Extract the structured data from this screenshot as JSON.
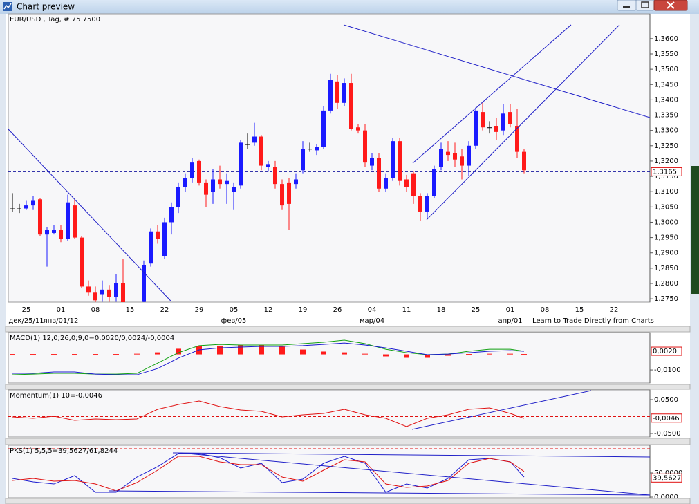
{
  "window": {
    "title": "Chart preview"
  },
  "link_text": "Learn to Trade Directly from Charts",
  "chart_data": [
    {
      "type": "candlestick",
      "title": "EUR/USD , Tag, # 75 7500",
      "categories": [
        null,
        null,
        "25",
        null,
        null,
        null,
        null,
        "01",
        null,
        null,
        null,
        null,
        "08",
        null,
        null,
        null,
        null,
        "15",
        null,
        null,
        null,
        null,
        "22",
        null,
        null,
        null,
        null,
        "29",
        null,
        null,
        null,
        null,
        "05",
        null,
        null,
        null,
        null,
        "12",
        null,
        null,
        null,
        null,
        "19",
        null,
        null,
        null,
        null,
        "26",
        null,
        null,
        null,
        null,
        "04",
        null,
        null,
        null,
        null,
        "11",
        null,
        null,
        null,
        null,
        "18",
        null,
        null,
        null,
        null,
        "25",
        null,
        null,
        null,
        null,
        "01",
        null,
        null,
        null,
        null,
        "08",
        null,
        null,
        null,
        null,
        "15",
        null,
        null,
        null,
        null,
        "22",
        null,
        null,
        null,
        null,
        null
      ],
      "period_labels": [
        null,
        null,
        "дек/25/11",
        null,
        null,
        null,
        null,
        "янв/01/12",
        null,
        null,
        null,
        null,
        null,
        null,
        null,
        null,
        null,
        null,
        null,
        null,
        null,
        null,
        null,
        null,
        null,
        null,
        null,
        null,
        null,
        null,
        null,
        null,
        "фев/05",
        null,
        null,
        null,
        null,
        null,
        null,
        null,
        null,
        null,
        null,
        null,
        null,
        null,
        null,
        null,
        null,
        null,
        null,
        null,
        "мар/04",
        null,
        null,
        null,
        null,
        null,
        null,
        null,
        null,
        null,
        null,
        null,
        null,
        null,
        null,
        null,
        null,
        null,
        null,
        null,
        "апр/01",
        null,
        null,
        null,
        null,
        null,
        null,
        null,
        null,
        null,
        null,
        null,
        null,
        null,
        null,
        null,
        null,
        null,
        null,
        null
      ],
      "open": [
        1.3045,
        1.3045,
        1.3045,
        1.3055,
        1.3075,
        1.296,
        1.2965,
        1.2975,
        1.2945,
        1.3055,
        1.295,
        1.279,
        1.277,
        1.2765,
        1.278,
        1.2755,
        1.28,
        null,
        null,
        1.274,
        1.2865,
        1.297,
        1.289,
        1.3,
        1.305,
        1.3115,
        1.3145,
        1.32,
        1.313,
        1.31,
        1.314,
        1.3125,
        1.31,
        1.312,
        1.3255,
        1.326,
        1.328,
        1.318,
        1.318,
        1.3125,
        1.313,
        1.3125,
        1.317,
        1.324,
        1.3235,
        1.3245,
        1.3365,
        1.346,
        1.339,
        1.3455,
        1.331,
        1.33,
        1.3185,
        1.321,
        1.311,
        1.3145,
        1.3265,
        1.314,
        1.316,
        1.3085,
        1.3035,
        1.3085,
        1.318,
        1.323,
        1.3225,
        1.3215,
        1.3185,
        1.325,
        1.336,
        1.331,
        1.3315,
        1.33,
        1.336,
        1.3315,
        1.323,
        null,
        null,
        null,
        null,
        null,
        null,
        null,
        null,
        null,
        null,
        null,
        null,
        null,
        null,
        null,
        null,
        null,
        null
      ],
      "high": [
        1.3095,
        1.306,
        1.307,
        1.3085,
        1.308,
        1.2985,
        1.299,
        1.299,
        1.309,
        1.3075,
        1.2955,
        1.281,
        1.279,
        1.281,
        1.2795,
        1.283,
        1.288,
        null,
        null,
        1.2875,
        1.298,
        1.299,
        1.3015,
        1.3065,
        1.313,
        1.316,
        1.321,
        1.3205,
        1.314,
        1.3175,
        1.3185,
        1.316,
        1.313,
        1.327,
        1.329,
        1.3325,
        1.3285,
        1.32,
        1.32,
        1.314,
        1.3145,
        1.316,
        1.3265,
        1.326,
        1.3255,
        1.338,
        1.3485,
        1.348,
        1.347,
        1.3485,
        1.332,
        1.332,
        1.3225,
        1.3225,
        1.316,
        1.3275,
        1.3275,
        1.3155,
        1.3165,
        1.3095,
        1.3095,
        1.3185,
        1.326,
        1.3265,
        1.326,
        1.324,
        1.3265,
        1.3375,
        1.339,
        1.333,
        1.334,
        1.3385,
        1.3385,
        1.337,
        1.324,
        null,
        null,
        null,
        null,
        null,
        null,
        null,
        null,
        null,
        null,
        null,
        null,
        null,
        null,
        null,
        null,
        null,
        null
      ],
      "low": [
        1.3035,
        1.303,
        1.304,
        1.304,
        1.2955,
        1.2855,
        1.296,
        1.2935,
        1.294,
        1.2945,
        1.2785,
        1.276,
        1.2735,
        1.274,
        1.274,
        1.274,
        1.272,
        null,
        null,
        1.273,
        1.2855,
        1.293,
        1.288,
        1.296,
        1.303,
        1.31,
        1.313,
        1.312,
        1.305,
        1.306,
        1.311,
        1.306,
        1.304,
        1.311,
        1.324,
        1.325,
        1.317,
        1.3165,
        1.311,
        1.304,
        1.2975,
        1.311,
        1.316,
        1.323,
        1.322,
        1.324,
        1.3355,
        1.337,
        1.338,
        1.33,
        1.329,
        1.318,
        1.317,
        1.31,
        1.31,
        1.3135,
        1.312,
        1.31,
        1.306,
        1.3005,
        1.301,
        1.308,
        1.317,
        1.32,
        1.318,
        1.314,
        1.315,
        1.324,
        1.33,
        1.329,
        1.327,
        1.3285,
        1.331,
        1.321,
        1.316,
        null,
        null,
        null,
        null,
        null,
        null,
        null,
        null,
        null,
        null,
        null,
        null,
        null,
        null,
        null,
        null,
        null,
        null
      ],
      "close": [
        1.3045,
        1.3045,
        1.3055,
        1.307,
        1.296,
        1.2975,
        1.2975,
        1.2945,
        1.3065,
        1.295,
        1.279,
        1.277,
        1.2745,
        1.278,
        1.2755,
        1.28,
        1.273,
        null,
        null,
        1.286,
        1.297,
        1.2945,
        1.3,
        1.305,
        1.3115,
        1.3145,
        1.3195,
        1.313,
        1.309,
        1.314,
        1.3125,
        1.3135,
        1.3115,
        1.326,
        1.3255,
        1.328,
        1.3185,
        1.319,
        1.3125,
        1.3055,
        1.306,
        1.314,
        1.324,
        1.324,
        1.3245,
        1.3365,
        1.3465,
        1.339,
        1.3455,
        1.3305,
        1.33,
        1.3195,
        1.321,
        1.311,
        1.3145,
        1.3265,
        1.3135,
        1.3115,
        1.3085,
        1.3035,
        1.3085,
        1.3175,
        1.324,
        1.322,
        1.3205,
        1.3185,
        1.325,
        1.3365,
        1.331,
        1.331,
        1.3295,
        1.3355,
        1.332,
        1.323,
        1.317,
        null,
        null,
        null,
        null,
        null,
        null,
        null,
        null,
        null,
        null,
        null,
        null,
        null,
        null,
        null,
        null,
        null,
        null
      ],
      "up_color": "#1a1aff",
      "down_color": "#ff1a1a",
      "doji_color": "#000000",
      "ylim": [
        1.2739,
        1.3681
      ],
      "yticks": [
        {
          "value": 1.275,
          "label": "1,2750"
        },
        {
          "value": 1.28,
          "label": "1,2800"
        },
        {
          "value": 1.285,
          "label": "1,2850"
        },
        {
          "value": 1.29,
          "label": "1,2900"
        },
        {
          "value": 1.295,
          "label": "1,2950"
        },
        {
          "value": 1.3,
          "label": "1,3000"
        },
        {
          "value": 1.305,
          "label": "1,3050"
        },
        {
          "value": 1.31,
          "label": "1,3100"
        },
        {
          "value": 1.315,
          "label": "1,3150"
        },
        {
          "value": 1.32,
          "label": "1,3200"
        },
        {
          "value": 1.325,
          "label": "1,3250"
        },
        {
          "value": 1.33,
          "label": "1,3300"
        },
        {
          "value": 1.335,
          "label": "1,3350"
        },
        {
          "value": 1.34,
          "label": "1,3400"
        },
        {
          "value": 1.345,
          "label": "1,3450"
        },
        {
          "value": 1.35,
          "label": "1,3500"
        },
        {
          "value": 1.355,
          "label": "1,3550"
        },
        {
          "value": 1.36,
          "label": "1,3600"
        }
      ],
      "current_value": {
        "value": 1.3165,
        "label": "1,3165"
      },
      "current_line_color": "#1a1aa0",
      "trend_lines": [
        {
          "x": [
            -0.6,
            22.9
          ],
          "y": [
            1.3304,
            1.2743
          ]
        },
        {
          "x": [
            47.9,
            92.2
          ],
          "y": [
            1.3645,
            1.3342
          ]
        },
        {
          "x": [
            57.9,
            80.8
          ],
          "y": [
            1.3193,
            1.3645
          ]
        },
        {
          "x": [
            59.9,
            87.8
          ],
          "y": [
            1.3008,
            1.3645
          ]
        }
      ],
      "trend_color": "#2020c8"
    },
    {
      "type": "line",
      "title": "MACD(1) 12,0;26,0;9,0=0,0020/0,0024/-0,0004",
      "title_color": "#108010",
      "x": [
        0,
        3,
        6,
        9,
        12,
        15,
        18,
        21,
        24,
        27,
        30,
        33,
        36,
        39,
        42,
        45,
        48,
        51,
        54,
        57,
        60,
        63,
        66,
        69,
        72,
        74
      ],
      "series": [
        {
          "color": "#ff1a1a",
          "style": "histogram",
          "values": [
            0.0002,
            0.0002,
            0.0002,
            0.0002,
            0.0002,
            0.0002,
            0.0004,
            0.0013,
            0.0036,
            0.0053,
            0.0056,
            0.0058,
            0.0058,
            0.0049,
            0.0031,
            0.0018,
            0.0013,
            0.0004,
            -0.0013,
            -0.0022,
            -0.0022,
            -0.0009,
            0.0002,
            0.0004,
            0.0004,
            0.0002
          ]
        },
        {
          "color": "#10a010",
          "style": "line",
          "values": [
            -0.0131,
            -0.0127,
            -0.0122,
            -0.0122,
            -0.0127,
            -0.0127,
            -0.0122,
            -0.0056,
            0.0011,
            0.0056,
            0.0064,
            0.006,
            0.006,
            0.006,
            0.0069,
            0.0078,
            0.0091,
            0.0069,
            0.0033,
            0.0011,
            -0.0002,
            0.0002,
            0.002,
            0.0033,
            0.0033,
            0.002
          ]
        },
        {
          "color": "#1a1ad0",
          "style": "line",
          "values": [
            -0.0122,
            -0.0122,
            -0.0113,
            -0.0113,
            -0.0127,
            -0.0131,
            -0.0131,
            -0.0091,
            -0.0024,
            0.0029,
            0.0042,
            0.0047,
            0.0051,
            0.0051,
            0.0056,
            0.0064,
            0.0073,
            0.006,
            0.0042,
            0.002,
            -0.0002,
            0.0002,
            0.0011,
            0.002,
            0.0024,
            0.002
          ]
        }
      ],
      "ylim": [
        -0.0184,
        0.014
      ],
      "yticks": [
        {
          "value": -0.01,
          "label": "-0,0100"
        }
      ],
      "current_value": {
        "value": 0.002,
        "label": "0,0020"
      }
    },
    {
      "type": "line",
      "title": "Momentum(1) 10=-0,0046",
      "title_color": "#d01010",
      "x": [
        0,
        3,
        6,
        9,
        12,
        15,
        18,
        21,
        24,
        27,
        30,
        33,
        36,
        39,
        42,
        45,
        48,
        51,
        54,
        57,
        60,
        63,
        66,
        69,
        72,
        74
      ],
      "series": [
        {
          "color": "#e01010",
          "style": "line",
          "values": [
            -0.001,
            -0.0051,
            0.001,
            -0.0112,
            -0.0071,
            -0.0092,
            -0.0071,
            0.0214,
            0.0357,
            0.0459,
            0.0296,
            0.0194,
            0.0153,
            -0.001,
            0.0051,
            0.0092,
            0.0214,
            0.0051,
            -0.0051,
            -0.0296,
            -0.0051,
            0.0051,
            0.0214,
            0.0255,
            0.0092,
            -0.0051
          ]
        }
      ],
      "zero_line": true,
      "zero_line_color": "#e01010",
      "ylim": [
        -0.0602,
        0.0786
      ],
      "yticks": [
        {
          "value": -0.05,
          "label": "-0,0500"
        },
        {
          "value": 0.05,
          "label": "0,0500"
        }
      ],
      "current_value": {
        "value": -0.0046,
        "label": "-0,0046"
      },
      "trend_lines": [
        {
          "x": [
            57.8,
            83.7
          ],
          "y": [
            -0.0378,
            0.0765
          ]
        }
      ],
      "trend_color": "#2020c8"
    },
    {
      "type": "line",
      "title": "PKS(1) 5,5,5=39,5627/61,8244",
      "title_color": "#1a1ad0",
      "x": [
        0,
        3,
        6,
        9,
        12,
        15,
        18,
        21,
        24,
        27,
        30,
        33,
        36,
        39,
        42,
        45,
        48,
        51,
        54,
        57,
        60,
        63,
        66,
        69,
        72,
        74
      ],
      "series": [
        {
          "color": "#1a1ad0",
          "style": "line",
          "values": [
            38.6,
            31.4,
            27.1,
            44.3,
            10,
            10,
            41.4,
            62.9,
            90,
            90,
            81.4,
            60,
            70,
            30,
            37.1,
            70,
            84.3,
            70,
            10,
            27.1,
            18.6,
            38.6,
            77.1,
            80,
            72.9,
            41.4
          ]
        },
        {
          "color": "#e01010",
          "style": "line",
          "values": [
            34.3,
            38.6,
            32.9,
            34.3,
            27.1,
            12.9,
            30,
            55.7,
            84.3,
            84.3,
            72.9,
            67.1,
            67.1,
            41.4,
            32.9,
            55.7,
            77.1,
            72.9,
            27.1,
            20,
            22.9,
            34.3,
            70,
            80,
            72.9,
            52.9
          ]
        }
      ],
      "level_line": 100,
      "level_line_color": "#e01010",
      "ylim": [
        -1.4,
        107.1
      ],
      "yticks": [
        {
          "value": 0,
          "label": "0,0000"
        },
        {
          "value": 50,
          "label": "50,0000"
        }
      ],
      "current_value": {
        "value": 39.5627,
        "label": "39,5627"
      },
      "trend_lines": [
        {
          "x": [
            23.2,
            92.2
          ],
          "y": [
            91.4,
            82.9
          ]
        },
        {
          "x": [
            14,
            92.2
          ],
          "y": [
            12.9,
            4.3
          ]
        },
        {
          "x": [
            24.2,
            92.2
          ],
          "y": [
            91.4,
            4.3
          ]
        }
      ],
      "trend_color": "#2020c8"
    }
  ]
}
